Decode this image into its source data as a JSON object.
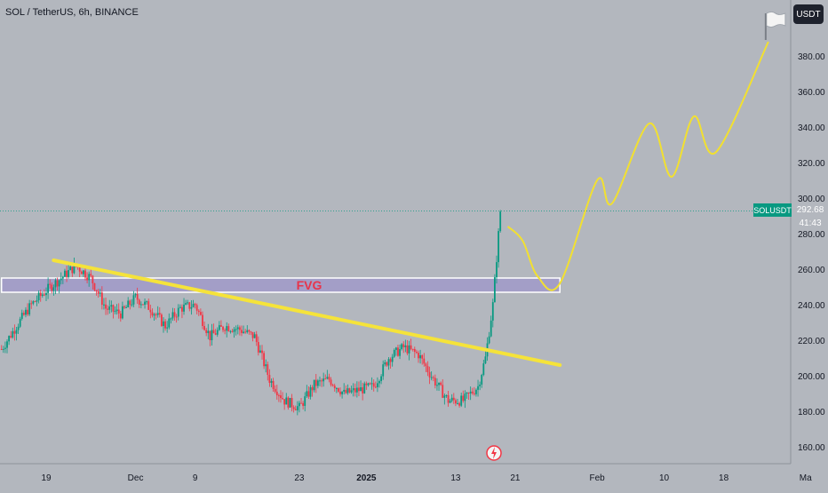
{
  "header": {
    "symbol_title": "SOL / TetherUS, 6h, BINANCE"
  },
  "toolbar": {
    "currency_label": "USDT"
  },
  "price_badge": {
    "symbol": "SOLUSDT",
    "price": "292.68",
    "countdown": "41:43"
  },
  "annotations": {
    "fvg_label": "FVG"
  },
  "colors": {
    "up": "#089981",
    "down": "#f23645",
    "trendline": "#f5e33a",
    "projection": "#f2e030",
    "fvg_fill": "#9e95c9",
    "fvg_text": "#e8344a",
    "background": "#b3b7be"
  },
  "chart_data": {
    "type": "candlestick",
    "title": "SOL / TetherUS, 6h, BINANCE",
    "x_ticks": [
      "19",
      "Dec",
      "9",
      "23",
      "2025",
      "13",
      "21",
      "Feb",
      "10",
      "18",
      "Ma"
    ],
    "y_ticks": [
      "160.00",
      "180.00",
      "200.00",
      "220.00",
      "240.00",
      "260.00",
      "280.00",
      "300.00",
      "320.00",
      "340.00",
      "360.00",
      "380.00"
    ],
    "ylim": [
      150,
      410
    ],
    "last_price": 292.68,
    "price_path": [
      [
        "2024-11-13",
        215
      ],
      [
        "2024-11-15",
        228
      ],
      [
        "2024-11-17",
        240
      ],
      [
        "2024-11-19",
        248
      ],
      [
        "2024-11-21",
        255
      ],
      [
        "2024-11-23",
        262
      ],
      [
        "2024-11-25",
        255
      ],
      [
        "2024-11-27",
        238
      ],
      [
        "2024-11-29",
        235
      ],
      [
        "2024-12-01",
        244
      ],
      [
        "2024-12-03",
        238
      ],
      [
        "2024-12-05",
        228
      ],
      [
        "2024-12-07",
        238
      ],
      [
        "2024-12-09",
        240
      ],
      [
        "2024-12-11",
        222
      ],
      [
        "2024-12-13",
        228
      ],
      [
        "2024-12-15",
        226
      ],
      [
        "2024-12-17",
        222
      ],
      [
        "2024-12-19",
        198
      ],
      [
        "2024-12-21",
        186
      ],
      [
        "2024-12-23",
        182
      ],
      [
        "2024-12-25",
        195
      ],
      [
        "2024-12-27",
        198
      ],
      [
        "2024-12-29",
        190
      ],
      [
        "2024-12-31",
        192
      ],
      [
        "2025-01-02",
        194
      ],
      [
        "2025-01-04",
        210
      ],
      [
        "2025-01-06",
        216
      ],
      [
        "2025-01-08",
        212
      ],
      [
        "2025-01-10",
        198
      ],
      [
        "2025-01-12",
        186
      ],
      [
        "2025-01-14",
        186
      ],
      [
        "2025-01-16",
        194
      ],
      [
        "2025-01-17",
        210
      ],
      [
        "2025-01-18",
        240
      ],
      [
        "2025-01-19",
        292.68
      ]
    ],
    "fvg_zone": {
      "from": "2024-11-13",
      "to": "2025-01-27",
      "low": 247,
      "high": 255,
      "label": "FVG"
    },
    "trendline": [
      [
        "2024-11-20",
        265
      ],
      [
        "2025-01-27",
        206
      ]
    ],
    "projection": [
      [
        "2025-01-20",
        284
      ],
      [
        "2025-01-22",
        276
      ],
      [
        "2025-01-24",
        256
      ],
      [
        "2025-01-27",
        252
      ],
      [
        "2025-02-01",
        310
      ],
      [
        "2025-02-03",
        297
      ],
      [
        "2025-02-08",
        342
      ],
      [
        "2025-02-11",
        312
      ],
      [
        "2025-02-14",
        346
      ],
      [
        "2025-02-17",
        326
      ],
      [
        "2025-02-24",
        388
      ]
    ],
    "target_flag_price": 396,
    "grid": false,
    "legend": "none"
  }
}
